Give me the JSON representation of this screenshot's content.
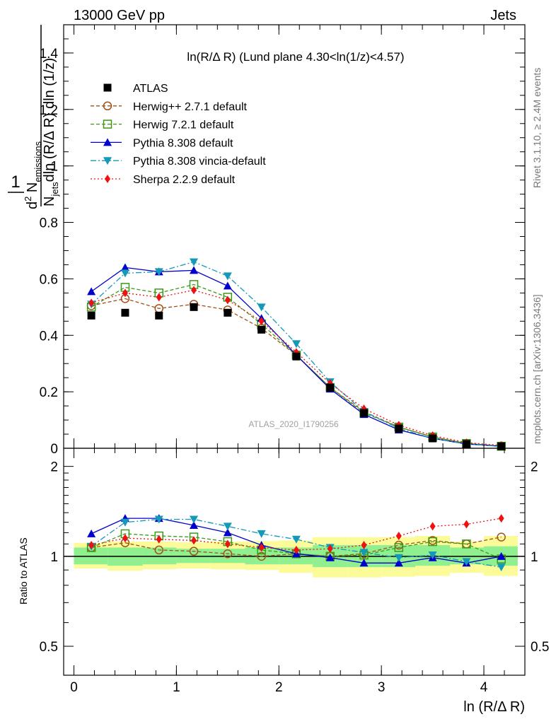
{
  "header": {
    "left": "13000 GeV pp",
    "right": "Jets"
  },
  "side_labels": {
    "rivet": "Rivet 3.1.10, ≥ 2.4M events",
    "mcplots": "mcplots.cern.ch [arXiv:1306.3436]"
  },
  "watermark": "ATLAS_2020_I1790256",
  "chart_data": [
    {
      "type": "line",
      "title": "ln(R/Δ R) (Lund plane 4.30<ln(1/z)<4.57)",
      "ylabel": "1/N_jets dln(R/ΔR) dln(1/z) d²N_emissions",
      "xlabel": "",
      "xlim": [
        -0.1,
        4.4
      ],
      "ylim": [
        0,
        1.5
      ],
      "yticks": [
        0,
        0.2,
        0.4,
        0.6,
        0.8,
        1,
        1.2,
        1.4
      ],
      "ytick_labels": [
        "0",
        "0.2",
        "0.4",
        "0.6",
        "0.8",
        "1",
        "1.2",
        "1.4"
      ],
      "legend_position": "top-left",
      "x": [
        0.17,
        0.5,
        0.83,
        1.17,
        1.5,
        1.83,
        2.17,
        2.5,
        2.83,
        3.17,
        3.5,
        3.83,
        4.17
      ],
      "series": [
        {
          "name": "ATLAS",
          "color": "#000000",
          "marker": "square-filled",
          "line": "none",
          "values": [
            0.47,
            0.48,
            0.47,
            0.5,
            0.48,
            0.42,
            0.325,
            0.215,
            0.125,
            0.07,
            0.035,
            0.015,
            0.007
          ]
        },
        {
          "name": "Herwig++ 2.7.1 default",
          "color": "#a0521d",
          "marker": "circle-open",
          "line": "dashed",
          "values": [
            0.505,
            0.53,
            0.495,
            0.51,
            0.49,
            0.425,
            0.33,
            0.215,
            0.13,
            0.075,
            0.04,
            0.017,
            0.008
          ]
        },
        {
          "name": "Herwig 7.2.1 default",
          "color": "#3a9a16",
          "marker": "square-open",
          "line": "dashed",
          "values": [
            0.5,
            0.57,
            0.55,
            0.58,
            0.535,
            0.44,
            0.33,
            0.215,
            0.125,
            0.075,
            0.04,
            0.017,
            0.007
          ]
        },
        {
          "name": "Pythia 8.308 default",
          "color": "#0000cc",
          "marker": "triangle-up-filled",
          "line": "solid",
          "values": [
            0.555,
            0.64,
            0.625,
            0.63,
            0.575,
            0.46,
            0.33,
            0.21,
            0.12,
            0.065,
            0.035,
            0.015,
            0.007
          ]
        },
        {
          "name": "Pythia 8.308 vincia-default",
          "color": "#1599b8",
          "marker": "triangle-down-filled",
          "line": "dashdot",
          "values": [
            0.51,
            0.62,
            0.625,
            0.66,
            0.61,
            0.5,
            0.37,
            0.235,
            0.13,
            0.07,
            0.035,
            0.015,
            0.0065
          ]
        },
        {
          "name": "Sherpa 2.2.9 default",
          "color": "#ee1111",
          "marker": "diamond-filled",
          "line": "dotted",
          "values": [
            0.515,
            0.55,
            0.535,
            0.56,
            0.525,
            0.45,
            0.34,
            0.23,
            0.14,
            0.082,
            0.045,
            0.02,
            0.01
          ]
        }
      ]
    },
    {
      "type": "line",
      "title": "",
      "ylabel": "Ratio to ATLAS",
      "xlabel": "ln (R/Δ R)",
      "xlim": [
        -0.1,
        4.4
      ],
      "ylim": [
        0.4,
        2.3
      ],
      "log_y": true,
      "yticks": [
        0.5,
        1,
        2
      ],
      "ytick_labels": [
        "0.5",
        "1",
        "2"
      ],
      "xticks": [
        0,
        1,
        2,
        3,
        4
      ],
      "xtick_labels": [
        "0",
        "1",
        "2",
        "3",
        "4"
      ],
      "x": [
        0.17,
        0.5,
        0.83,
        1.17,
        1.5,
        1.83,
        2.17,
        2.5,
        2.83,
        3.17,
        3.5,
        3.83,
        4.17
      ],
      "bins": [
        0,
        0.33,
        0.67,
        1,
        1.33,
        1.67,
        2,
        2.33,
        2.67,
        3,
        3.33,
        3.67,
        4,
        4.33
      ],
      "bands": {
        "stat_color": "#90f090",
        "total_color": "#fbfb99",
        "stat": [
          [
            0.94,
            1.07
          ],
          [
            0.93,
            1.07
          ],
          [
            0.94,
            1.07
          ],
          [
            0.95,
            1.06
          ],
          [
            0.95,
            1.06
          ],
          [
            0.94,
            1.07
          ],
          [
            0.94,
            1.07
          ],
          [
            0.92,
            1.09
          ],
          [
            0.92,
            1.09
          ],
          [
            0.92,
            1.09
          ],
          [
            0.93,
            1.09
          ],
          [
            0.94,
            1.07
          ],
          [
            0.93,
            1.08
          ]
        ],
        "total": [
          [
            0.91,
            1.11
          ],
          [
            0.895,
            1.12
          ],
          [
            0.905,
            1.12
          ],
          [
            0.91,
            1.115
          ],
          [
            0.905,
            1.12
          ],
          [
            0.9,
            1.125
          ],
          [
            0.88,
            1.13
          ],
          [
            0.85,
            1.16
          ],
          [
            0.85,
            1.16
          ],
          [
            0.855,
            1.16
          ],
          [
            0.86,
            1.17
          ],
          [
            0.88,
            1.12
          ],
          [
            0.86,
            1.17
          ]
        ]
      },
      "series": [
        {
          "name": "Herwig++ 2.7.1 default",
          "color": "#a0521d",
          "marker": "circle-open",
          "line": "dashed",
          "values": [
            1.07,
            1.11,
            1.05,
            1.04,
            1.02,
            1.0,
            1.02,
            1.0,
            1.02,
            1.09,
            1.13,
            1.1,
            1.16
          ]
        },
        {
          "name": "Herwig 7.2.1 default",
          "color": "#3a9a16",
          "marker": "square-open",
          "line": "dashed",
          "values": [
            1.07,
            1.19,
            1.17,
            1.16,
            1.12,
            1.05,
            1.02,
            1.0,
            1.01,
            1.07,
            1.12,
            1.1,
            0.98
          ]
        },
        {
          "name": "Pythia 8.308 default",
          "color": "#0000cc",
          "marker": "triangle-up-filled",
          "line": "solid",
          "values": [
            1.19,
            1.34,
            1.34,
            1.27,
            1.2,
            1.09,
            1.02,
            0.99,
            0.95,
            0.95,
            0.99,
            0.95,
            1.0
          ]
        },
        {
          "name": "Pythia 8.308 vincia-default",
          "color": "#1599b8",
          "marker": "triangle-down-filled",
          "line": "dashdot",
          "values": [
            1.08,
            1.3,
            1.33,
            1.33,
            1.26,
            1.19,
            1.14,
            1.07,
            1.03,
            0.99,
            1.01,
            0.96,
            0.92
          ]
        },
        {
          "name": "Sherpa 2.2.9 default",
          "color": "#ee1111",
          "marker": "diamond-filled",
          "line": "dotted",
          "values": [
            1.09,
            1.15,
            1.14,
            1.13,
            1.1,
            1.07,
            1.05,
            1.06,
            1.09,
            1.17,
            1.26,
            1.28,
            1.34
          ]
        }
      ]
    }
  ]
}
